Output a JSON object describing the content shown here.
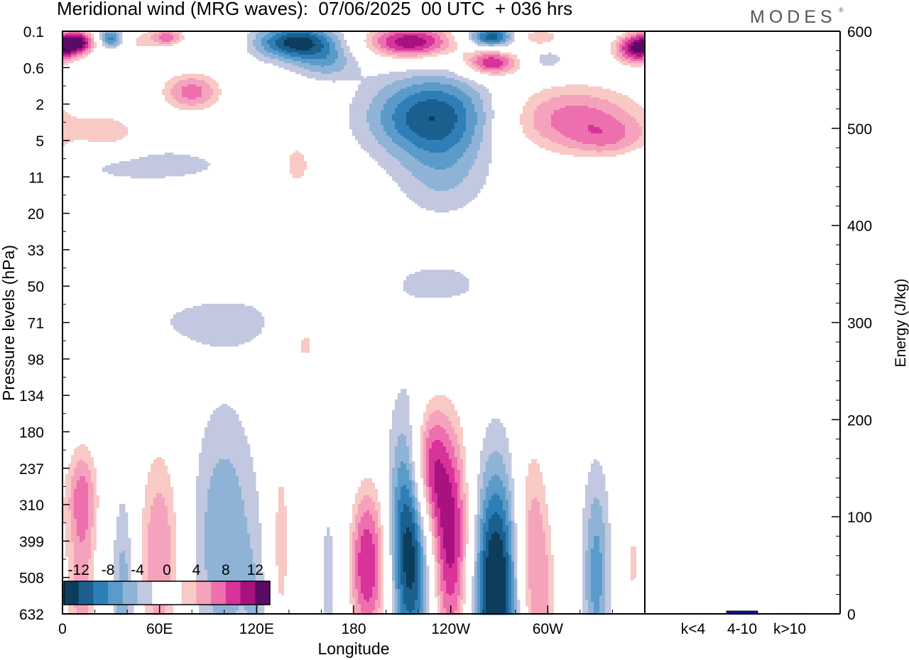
{
  "title": "Meridional wind (MRG waves):  07/06/2025  00 UTC  + 036 hrs",
  "logo": "MODES",
  "logo_mark": "®",
  "chart_data": [
    {
      "type": "heatmap",
      "title": "Meridional wind (MRG waves)",
      "xlabel": "Longitude",
      "ylabel": "Pressure levels (hPa)",
      "x_ticks": [
        "0",
        "60E",
        "120E",
        "180",
        "120W",
        "60W"
      ],
      "x_tick_values": [
        0,
        60,
        120,
        180,
        240,
        300
      ],
      "xlim": [
        0,
        360
      ],
      "y_ticks": [
        "0.1",
        "0.6",
        "2",
        "5",
        "11",
        "20",
        "33",
        "50",
        "71",
        "98",
        "134",
        "180",
        "237",
        "310",
        "399",
        "508",
        "632"
      ],
      "colorbar": {
        "labels": [
          "-12",
          "-8",
          "-4",
          "0",
          "4",
          "8",
          "12"
        ],
        "label_values": [
          -12,
          -8,
          -4,
          0,
          4,
          8,
          12
        ],
        "levels": [
          -14,
          -12,
          -10,
          -8,
          -6,
          -4,
          -2,
          2,
          4,
          6,
          8,
          10,
          12,
          14
        ],
        "colors": [
          "#0c3d5c",
          "#1a5f8e",
          "#2e7fb8",
          "#5b9bc9",
          "#8fb3d6",
          "#c1c8e0",
          "#ffffff",
          "#ffffff",
          "#f9c9c6",
          "#f5a3bd",
          "#ee6fad",
          "#d7339a",
          "#a8127f",
          "#5b0a66"
        ]
      },
      "blobs": [
        {
          "lon": 10,
          "lev": 0.45,
          "w": 8,
          "h": 0.35,
          "amp": 13
        },
        {
          "lon": 30,
          "lev": 0.3,
          "w": 6,
          "h": 0.3,
          "amp": -10
        },
        {
          "lon": 45,
          "lev": 0.5,
          "w": 10,
          "h": 0.5,
          "amp": 4
        },
        {
          "lon": 65,
          "lev": 0.25,
          "w": 8,
          "h": 0.25,
          "amp": 9
        },
        {
          "lon": 80,
          "lev": 2.5,
          "w": 14,
          "h": 0.6,
          "amp": 9
        },
        {
          "lon": 30,
          "lev": 4.2,
          "w": 14,
          "h": 0.6,
          "amp": 5
        },
        {
          "lon": 100,
          "lev": 0.35,
          "w": 8,
          "h": 0.35,
          "amp": 4
        },
        {
          "lon": 145,
          "lev": 0.45,
          "w": 18,
          "h": 0.5,
          "amp": -13
        },
        {
          "lon": 163,
          "lev": 1.3,
          "w": 14,
          "h": 0.5,
          "amp": -5
        },
        {
          "lon": 215,
          "lev": 0.45,
          "w": 20,
          "h": 0.5,
          "amp": 14
        },
        {
          "lon": 265,
          "lev": 0.25,
          "w": 10,
          "h": 0.3,
          "amp": -12
        },
        {
          "lon": 265,
          "lev": 1.3,
          "w": 12,
          "h": 0.4,
          "amp": 12
        },
        {
          "lon": 295,
          "lev": 0.25,
          "w": 10,
          "h": 0.3,
          "amp": 6
        },
        {
          "lon": 300,
          "lev": 1.2,
          "w": 8,
          "h": 0.35,
          "amp": -4
        },
        {
          "lon": 355,
          "lev": 0.7,
          "w": 10,
          "h": 0.45,
          "amp": 14
        },
        {
          "lon": 230,
          "lev": 3.5,
          "w": 28,
          "h": 1.2,
          "amp": -12
        },
        {
          "lon": 315,
          "lev": 3.6,
          "w": 35,
          "h": 1.1,
          "amp": 9
        },
        {
          "lon": 340,
          "lev": 4.5,
          "w": 18,
          "h": 0.6,
          "amp": 4
        },
        {
          "lon": 235,
          "lev": 6,
          "w": 20,
          "h": 1.2,
          "amp": -4
        },
        {
          "lon": 50,
          "lev": 5.5,
          "w": 45,
          "h": 0.6,
          "amp": -3
        },
        {
          "lon": 145,
          "lev": 5.5,
          "w": 10,
          "h": 1.0,
          "amp": 5
        },
        {
          "lon": 235,
          "lev": 10.4,
          "w": 25,
          "h": 0.7,
          "amp": -3
        },
        {
          "lon": 290,
          "lev": 10,
          "w": 18,
          "h": 0.7,
          "amp": 4
        },
        {
          "lon": 100,
          "lev": 12,
          "w": 40,
          "h": 0.8,
          "amp": -3
        },
        {
          "lon": 150,
          "lev": 12.6,
          "w": 12,
          "h": 1.3,
          "amp": 5
        },
        {
          "lon": 12,
          "lev": 19,
          "w": 8,
          "h": 1.5,
          "amp": 6
        },
        {
          "lon": 60,
          "lev": 21.6,
          "w": 10,
          "h": 3.5,
          "amp": 8
        },
        {
          "lon": 100,
          "lev": 21,
          "w": 14,
          "h": 3.8,
          "amp": -6
        },
        {
          "lon": 135,
          "lev": 21,
          "w": 6,
          "h": 4.0,
          "amp": 5
        },
        {
          "lon": 175,
          "lev": 22.2,
          "w": 12,
          "h": 3.5,
          "amp": -5
        },
        {
          "lon": 187,
          "lev": 22,
          "w": 10,
          "h": 2.6,
          "amp": 15
        },
        {
          "lon": 215,
          "lev": 21,
          "w": 9,
          "h": 3.5,
          "amp": -15
        },
        {
          "lon": 225,
          "lev": 18,
          "w": 8,
          "h": 2.0,
          "amp": 12
        },
        {
          "lon": 240,
          "lev": 21,
          "w": 9,
          "h": 3.5,
          "amp": 13
        },
        {
          "lon": 268,
          "lev": 23.2,
          "w": 10,
          "h": 3.6,
          "amp": -16
        },
        {
          "lon": 290,
          "lev": 21.5,
          "w": 8,
          "h": 3.5,
          "amp": 8
        },
        {
          "lon": 330,
          "lev": 22.4,
          "w": 6,
          "h": 3.0,
          "amp": -7
        },
        {
          "lon": 300,
          "lev": 25,
          "w": 6,
          "h": 3.0,
          "amp": 4
        },
        {
          "lon": 38,
          "lev": 23.6,
          "w": 5,
          "h": 3.2,
          "amp": -6
        },
        {
          "lon": 12,
          "lev": 23.4,
          "w": 7,
          "h": 3.6,
          "amp": 7
        },
        {
          "lon": 120,
          "lev": 25,
          "w": 5,
          "h": 3.0,
          "amp": -3
        },
        {
          "lon": 352,
          "lev": 22,
          "w": 6,
          "h": 2.5,
          "amp": 4
        }
      ]
    },
    {
      "type": "bar",
      "categories": [
        "k<4",
        "4-10",
        "k>10"
      ],
      "values": [
        0.5,
        3,
        0.5
      ],
      "ylabel": "Energy (J/kg)",
      "ylim": [
        0,
        600
      ],
      "y_ticks": [
        0,
        100,
        200,
        300,
        400,
        500,
        600
      ],
      "bar_color": "#1010a0"
    }
  ]
}
